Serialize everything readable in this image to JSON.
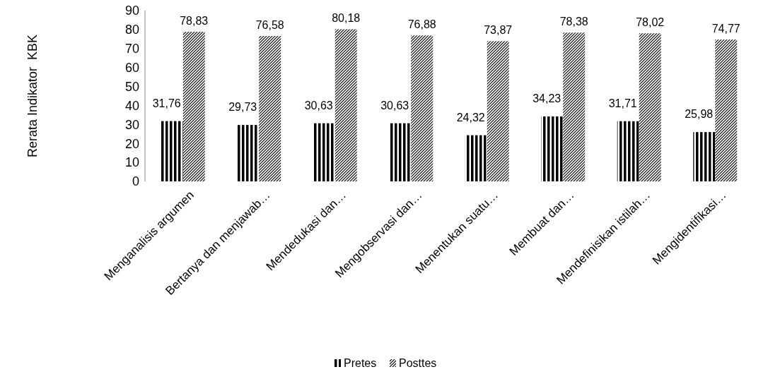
{
  "chart_data": {
    "type": "bar",
    "ylabel": "Rerata Indikator  KBK",
    "categories": [
      "Menganalisis argumen",
      "Bertanya dan menjawab…",
      "Mendedukasi dan…",
      "Mengobservasi dan…",
      "Menentukan suatu…",
      "Membuat dan…",
      "Mendefinisikan istilah…",
      "Mengidentifikasi…"
    ],
    "series": [
      {
        "name": "Pretes",
        "color": "#000000",
        "values": [
          31.76,
          29.73,
          30.63,
          30.63,
          24.32,
          34.23,
          31.71,
          25.98
        ],
        "value_labels": [
          "31,76",
          "29,73",
          "30,63",
          "30,63",
          "24,32",
          "34,23",
          "31,71",
          "25,98"
        ]
      },
      {
        "name": "Posttes",
        "color": "#000000",
        "values": [
          78.83,
          76.58,
          80.18,
          76.88,
          73.87,
          78.38,
          78.02,
          74.77
        ],
        "value_labels": [
          "78,83",
          "76,58",
          "80,18",
          "76,88",
          "73,87",
          "78,38",
          "78,02",
          "74,77"
        ]
      }
    ],
    "ylim": [
      0,
      90
    ],
    "yticks": [
      0,
      10,
      20,
      30,
      40,
      50,
      60,
      70,
      80,
      90
    ],
    "grid": false,
    "legend": "bottom"
  }
}
